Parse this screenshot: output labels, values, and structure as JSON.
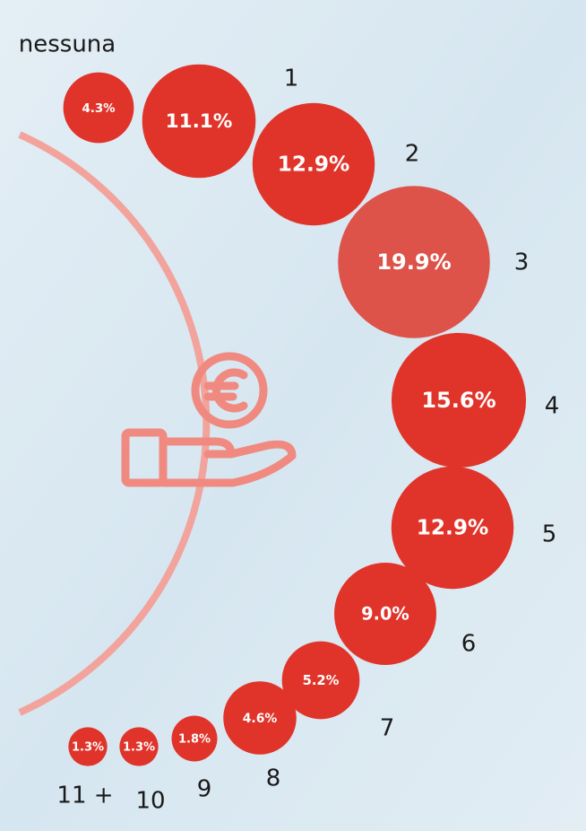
{
  "chart_data": {
    "type": "bubble",
    "categories": [
      "nessuna",
      "1",
      "2",
      "3",
      "4",
      "5",
      "6",
      "7",
      "8",
      "9",
      "10",
      "11 +"
    ],
    "values": [
      4.3,
      11.1,
      12.9,
      19.9,
      15.6,
      12.9,
      9.0,
      5.2,
      4.6,
      1.8,
      1.3,
      1.3
    ],
    "value_labels": [
      "4.3%",
      "11.1%",
      "12.9%",
      "19.9%",
      "15.6%",
      "12.9%",
      "9.0%",
      "5.2%",
      "4.6%",
      "1.8%",
      "1.3%",
      "1.3%"
    ],
    "colors": [
      "#e0342a",
      "#e0342a",
      "#e0342a",
      "#dd5249",
      "#e0342a",
      "#e0342a",
      "#e0342a",
      "#e0342a",
      "#e0342a",
      "#e0342a",
      "#e0342a",
      "#e0342a"
    ]
  }
}
